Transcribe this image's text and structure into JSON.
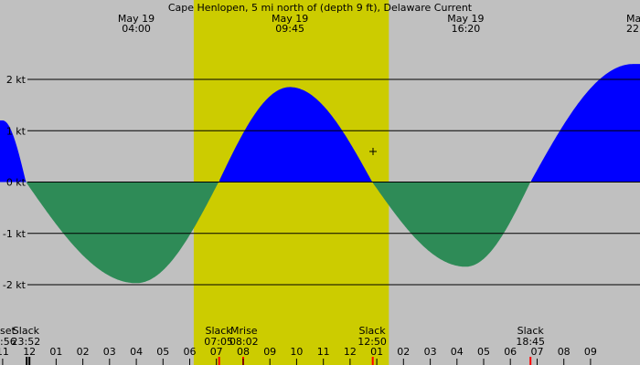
{
  "chart_data": {
    "type": "area",
    "title": "Cape Henlopen, 5 mi north of (depth 9 ft), Delaware Current",
    "unit": "kt",
    "x_unit": "hour of day",
    "x_range": [
      22.9,
      33.65
    ],
    "ylim": [
      -3.05,
      3.55
    ],
    "daylight": {
      "start": 6.15,
      "end": 13.45
    },
    "y_ticks": [
      {
        "value": 2,
        "label": "2 kt"
      },
      {
        "value": 1,
        "label": "1 kt"
      },
      {
        "value": 0,
        "label": "0 kt"
      },
      {
        "value": -1,
        "label": "-1 kt"
      },
      {
        "value": -2,
        "label": "-2 kt"
      }
    ],
    "x_ticks": [
      "11",
      "12",
      "01",
      "02",
      "03",
      "04",
      "05",
      "06",
      "07",
      "08",
      "09",
      "10",
      "11",
      "12",
      "01",
      "02",
      "03",
      "04",
      "05",
      "06",
      "07",
      "08",
      "09"
    ],
    "extrema_labels": [
      {
        "date": "May 19",
        "time": "04:00",
        "x": 4.0
      },
      {
        "date": "May 19",
        "time": "09:45",
        "x": 9.75
      },
      {
        "date": "May 19",
        "time": "16:20",
        "x": 16.33
      },
      {
        "date": "Ma",
        "time": "22",
        "x": 22.5
      }
    ],
    "bottom_events": [
      {
        "name": "Slack",
        "time": "23:52",
        "x": -0.13
      },
      {
        "name": "Slack",
        "time": "07:05",
        "x": 7.08
      },
      {
        "name": "Mrise",
        "time": "08:02",
        "x": 8.03
      },
      {
        "name": "Slack",
        "time": "12:50",
        "x": 12.83
      },
      {
        "name": "Slack",
        "time": "18:45",
        "x": 18.75
      }
    ],
    "bottom_partial": {
      "name": "set",
      "time": ":56"
    },
    "event_markers": [
      {
        "x": -0.1,
        "color": "#000000"
      },
      {
        "x": 0.0,
        "color": "#000000"
      },
      {
        "x": 7.1,
        "color": "#ff0000"
      },
      {
        "x": 8.0,
        "color": "#ff0000"
      },
      {
        "x": 12.85,
        "color": "#ff0000"
      },
      {
        "x": 18.75,
        "color": "#ff0000"
      }
    ],
    "series": [
      {
        "points": [
          [
            -1.0,
            1.2
          ],
          [
            -0.13,
            0
          ],
          [
            4.0,
            -1.97
          ],
          [
            7.08,
            0
          ],
          [
            9.75,
            1.85
          ],
          [
            12.83,
            0
          ],
          [
            16.33,
            -1.65
          ],
          [
            18.75,
            0
          ],
          [
            22.6,
            2.3
          ]
        ]
      }
    ],
    "colors": {
      "flood": "#0000ff",
      "ebb": "#2e8b57",
      "daylight": "#cccc00",
      "night": "#c0c0c0",
      "grid": "#000000"
    }
  }
}
